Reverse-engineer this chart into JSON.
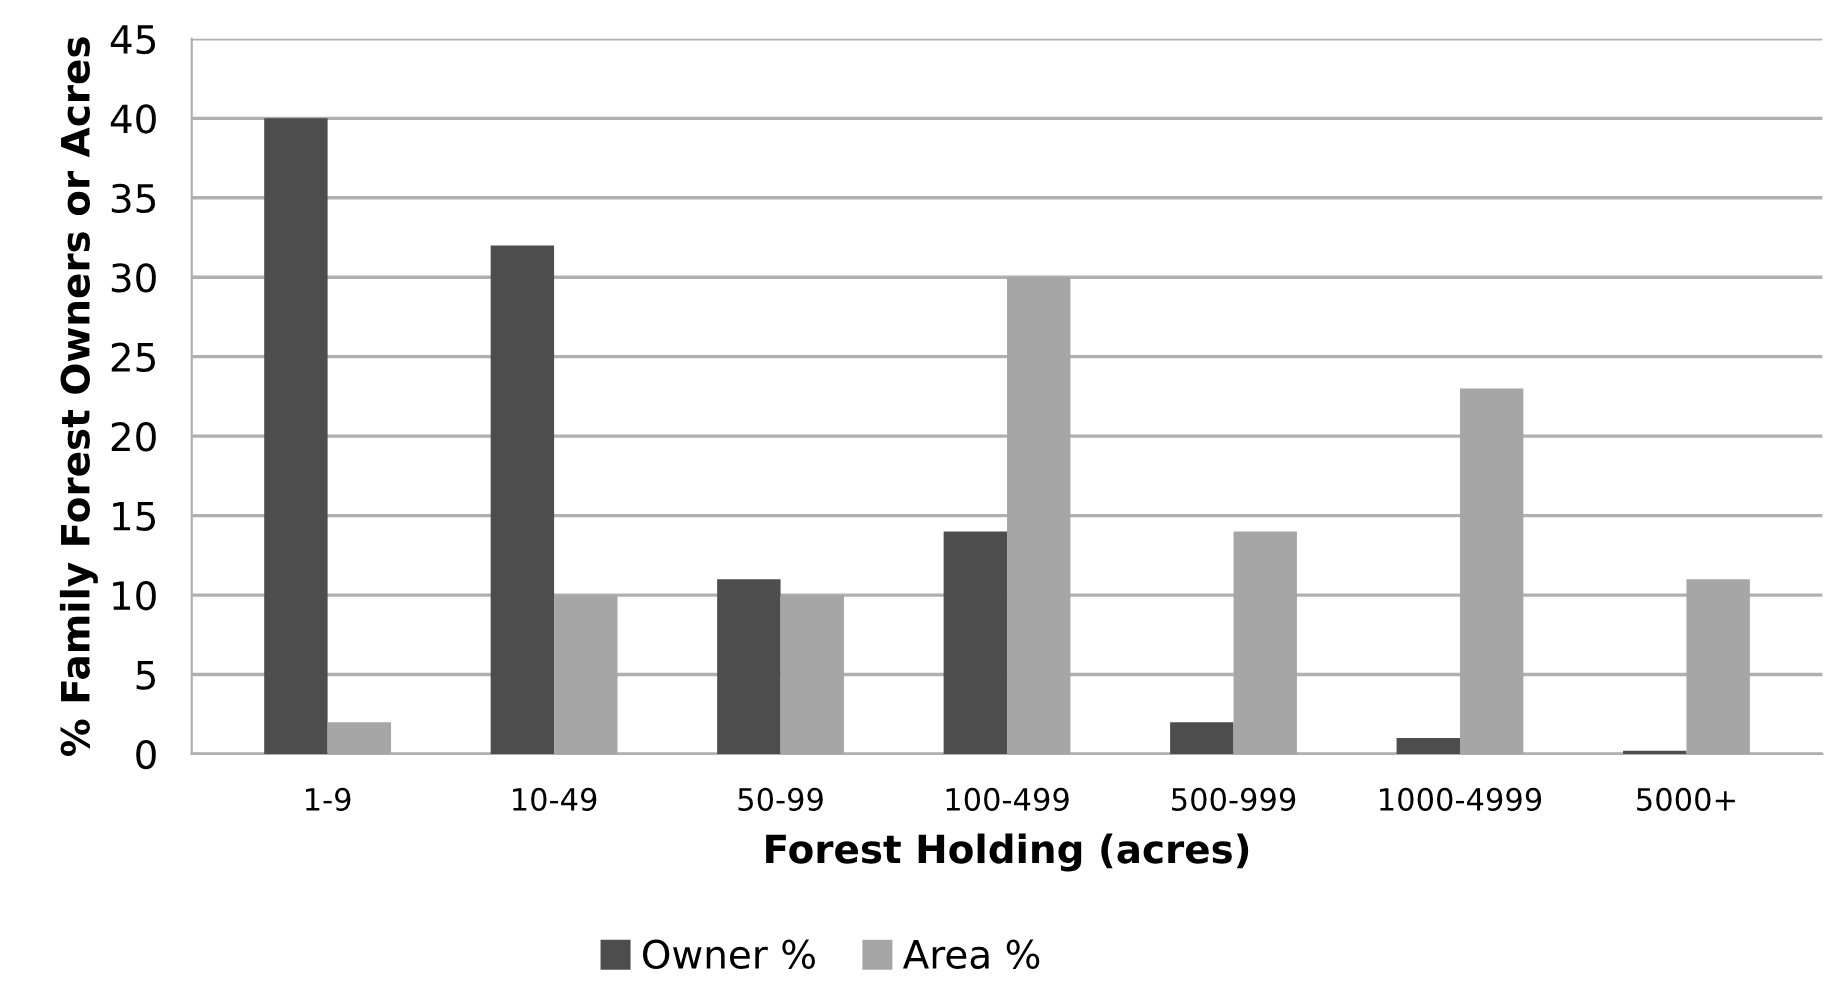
{
  "chart_data": {
    "type": "bar",
    "xlabel": "Forest Holding (acres)",
    "ylabel": "% Family Forest Owners or Acres",
    "categories": [
      "1-9",
      "10-49",
      "50-99",
      "100-499",
      "500-999",
      "1000-4999",
      "5000+"
    ],
    "series": [
      {
        "name": "Owner %",
        "color": "#4d4d4d",
        "values": [
          40,
          32,
          11,
          14,
          2,
          1,
          0.2
        ]
      },
      {
        "name": "Area %",
        "color": "#a6a6a6",
        "values": [
          2,
          10,
          10,
          30,
          14,
          23,
          11
        ]
      }
    ],
    "ylim": [
      0,
      45
    ],
    "yticks": [
      0,
      5,
      10,
      15,
      20,
      25,
      30,
      35,
      40,
      45
    ],
    "grid": "y",
    "legend": "bottom"
  }
}
